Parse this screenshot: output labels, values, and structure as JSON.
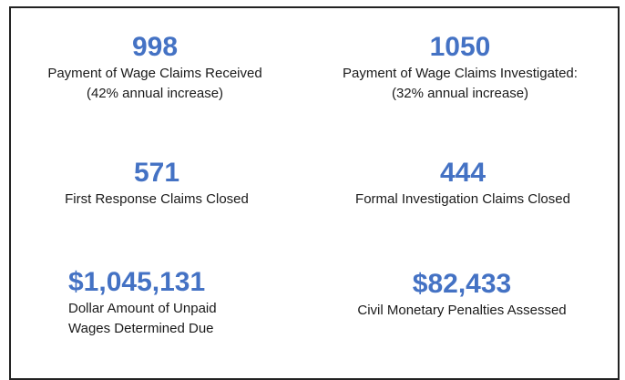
{
  "stats": [
    {
      "value": "998",
      "label": [
        "Payment of Wage Claims Received",
        "(42% annual increase)"
      ]
    },
    {
      "value": "1050",
      "label": [
        "Payment of Wage Claims Investigated:",
        "(32% annual increase)"
      ]
    },
    {
      "value": "571",
      "label": [
        "First Response Claims Closed"
      ]
    },
    {
      "value": "444",
      "label": [
        "Formal Investigation Claims Closed"
      ]
    },
    {
      "value": "$1,045,131",
      "label": [
        "Dollar Amount of Unpaid",
        "Wages Determined Due"
      ]
    },
    {
      "value": "$82,433",
      "label": [
        "Civil Monetary Penalties Assessed"
      ]
    }
  ]
}
